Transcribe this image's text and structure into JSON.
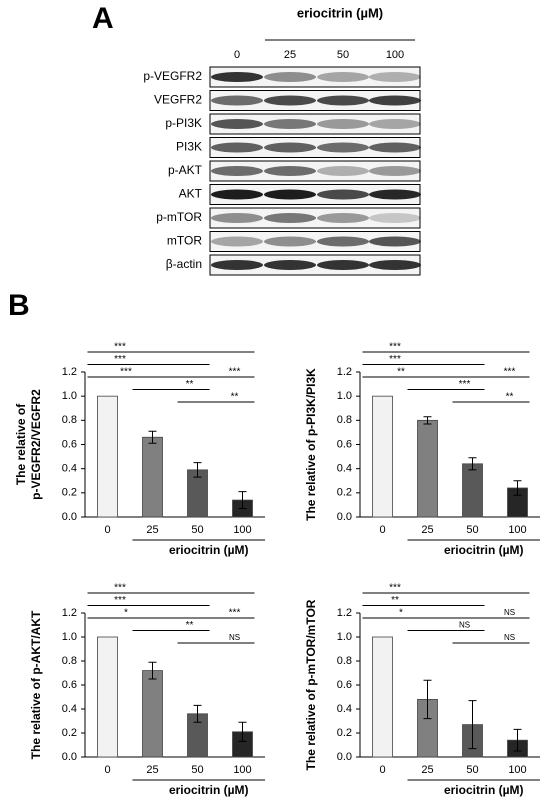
{
  "panel_labels": [
    "A",
    "B"
  ],
  "blot": {
    "title": "eriocitrin (µM)",
    "concentrations": [
      "0",
      "25",
      "50",
      "100"
    ],
    "rows": [
      "p-VEGFR2",
      "VEGFR2",
      "p-PI3K",
      "PI3K",
      "p-AKT",
      "AKT",
      "p-mTOR",
      "mTOR",
      "β-actin"
    ]
  },
  "chart_data": [
    {
      "type": "bar",
      "ylabel": [
        "The relative of",
        "p-VEGFR2/VEGFR2"
      ],
      "xlabel": "eriocitrin  (µM)",
      "categories": [
        "0",
        "25",
        "50",
        "100"
      ],
      "values": [
        1.0,
        0.66,
        0.39,
        0.14
      ],
      "errors": [
        0,
        0.05,
        0.06,
        0.07
      ],
      "colors": [
        "#f2f2f2",
        "#808080",
        "#595959",
        "#262626"
      ],
      "ylim": [
        0,
        1.2
      ],
      "yticks": [
        {
          "value": 0,
          "label": "0.0"
        },
        0.2,
        0.4,
        0.6,
        0.8,
        {
          "value": 1,
          "label": "1.0"
        },
        1.2
      ],
      "significance": [
        {
          "from": 0,
          "to": 3,
          "label": "***"
        },
        {
          "from": 0,
          "to": 2,
          "label": "***"
        },
        {
          "from": 0,
          "to": 1,
          "label": "***"
        },
        {
          "from": 1,
          "to": 3,
          "label": "***"
        },
        {
          "from": 1,
          "to": 2,
          "label": "**"
        },
        {
          "from": 2,
          "to": 3,
          "label": "**"
        }
      ]
    },
    {
      "type": "bar",
      "ylabel": [
        "The relative of p-PI3K/PI3K"
      ],
      "xlabel": "eriocitrin  (µM)",
      "categories": [
        "0",
        "25",
        "50",
        "100"
      ],
      "values": [
        1.0,
        0.8,
        0.44,
        0.24
      ],
      "errors": [
        0,
        0.03,
        0.05,
        0.06
      ],
      "colors": [
        "#f2f2f2",
        "#808080",
        "#595959",
        "#262626"
      ],
      "ylim": [
        0,
        1.2
      ],
      "yticks": [
        {
          "value": 0,
          "label": "0.0"
        },
        0.2,
        0.4,
        0.6,
        0.8,
        {
          "value": 1,
          "label": "1.0"
        },
        1.2
      ],
      "significance": [
        {
          "from": 0,
          "to": 3,
          "label": "***"
        },
        {
          "from": 0,
          "to": 2,
          "label": "***"
        },
        {
          "from": 0,
          "to": 1,
          "label": "**"
        },
        {
          "from": 1,
          "to": 3,
          "label": "***"
        },
        {
          "from": 1,
          "to": 2,
          "label": "***"
        },
        {
          "from": 2,
          "to": 3,
          "label": "**"
        }
      ]
    },
    {
      "type": "bar",
      "ylabel": [
        "The relative of p-AKT/AKT"
      ],
      "xlabel": "eriocitrin  (µM)",
      "categories": [
        "0",
        "25",
        "50",
        "100"
      ],
      "values": [
        1.0,
        0.72,
        0.36,
        0.21
      ],
      "errors": [
        0,
        0.07,
        0.07,
        0.08
      ],
      "colors": [
        "#f2f2f2",
        "#808080",
        "#595959",
        "#262626"
      ],
      "ylim": [
        0,
        1.2
      ],
      "yticks": [
        {
          "value": 0,
          "label": "0.0"
        },
        0.2,
        0.4,
        0.6,
        0.8,
        {
          "value": 1,
          "label": "1.0"
        },
        1.2
      ],
      "significance": [
        {
          "from": 0,
          "to": 3,
          "label": "***"
        },
        {
          "from": 0,
          "to": 2,
          "label": "***"
        },
        {
          "from": 0,
          "to": 1,
          "label": "*"
        },
        {
          "from": 1,
          "to": 3,
          "label": "***"
        },
        {
          "from": 1,
          "to": 2,
          "label": "**"
        },
        {
          "from": 2,
          "to": 3,
          "label": "NS"
        }
      ]
    },
    {
      "type": "bar",
      "ylabel": [
        "The relative of p-mTOR/mTOR"
      ],
      "xlabel": "eriocitrin  (µM)",
      "categories": [
        "0",
        "25",
        "50",
        "100"
      ],
      "values": [
        1.0,
        0.48,
        0.27,
        0.14
      ],
      "errors": [
        0,
        0.16,
        0.2,
        0.09
      ],
      "colors": [
        "#f2f2f2",
        "#808080",
        "#595959",
        "#262626"
      ],
      "ylim": [
        0,
        1.2
      ],
      "yticks": [
        {
          "value": 0,
          "label": "0.0"
        },
        0.2,
        0.4,
        0.6,
        0.8,
        {
          "value": 1,
          "label": "1.0"
        },
        1.2
      ],
      "significance": [
        {
          "from": 0,
          "to": 3,
          "label": "***"
        },
        {
          "from": 0,
          "to": 2,
          "label": "**"
        },
        {
          "from": 0,
          "to": 1,
          "label": "*"
        },
        {
          "from": 1,
          "to": 3,
          "label": "NS"
        },
        {
          "from": 1,
          "to": 2,
          "label": "NS"
        },
        {
          "from": 2,
          "to": 3,
          "label": "NS"
        }
      ]
    }
  ]
}
